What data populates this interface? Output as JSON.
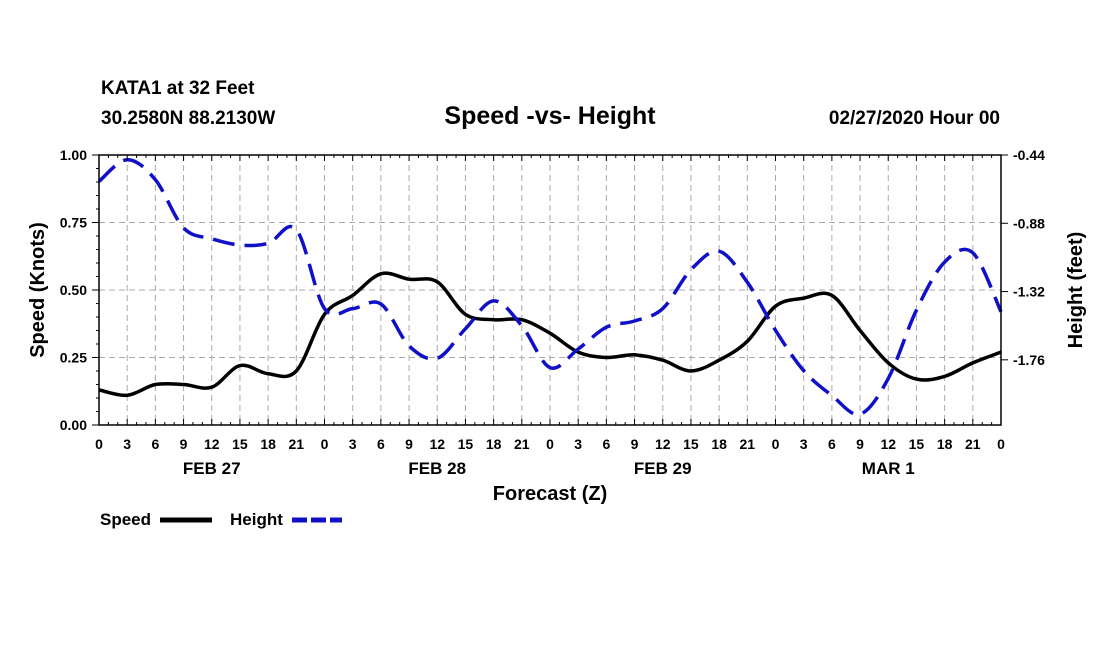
{
  "header": {
    "station": "KATA1 at 32 Feet",
    "coords": "30.2580N 88.2130W",
    "title": "Speed -vs- Height",
    "run": "02/27/2020 Hour 00"
  },
  "chart_data": {
    "type": "line",
    "title": "Speed -vs- Height",
    "xlabel": "Forecast (Z)",
    "ylabel_left": "Speed (Knots)",
    "ylabel_right": "Height (feet)",
    "x_unit": "hours since 02/27/2020 00Z",
    "xlim": [
      0,
      96
    ],
    "ylim_left": [
      0,
      1.0
    ],
    "ylim_right": [
      -2.18,
      -0.44
    ],
    "y_ticks_left": [
      "0.00",
      "0.25",
      "0.50",
      "0.75",
      "1.00"
    ],
    "y_tick_values_left": [
      0,
      0.25,
      0.5,
      0.75,
      1.0
    ],
    "y_ticks_right": [
      "-0.44",
      "-0.88",
      "-1.32",
      "-1.76"
    ],
    "y_tick_values_right": [
      -0.44,
      -0.88,
      -1.32,
      -1.76
    ],
    "x_tick_hours": [
      0,
      3,
      6,
      9,
      12,
      15,
      18,
      21,
      24,
      27,
      30,
      33,
      36,
      39,
      42,
      45,
      48,
      51,
      54,
      57,
      60,
      63,
      66,
      69,
      72,
      75,
      78,
      81,
      84,
      87,
      90,
      93,
      96
    ],
    "x_tick_labels": [
      "0",
      "3",
      "6",
      "9",
      "12",
      "15",
      "18",
      "21",
      "0",
      "3",
      "6",
      "9",
      "12",
      "15",
      "18",
      "21",
      "0",
      "3",
      "6",
      "9",
      "12",
      "15",
      "18",
      "21",
      "0",
      "3",
      "6",
      "9",
      "12",
      "15",
      "18",
      "21",
      "0"
    ],
    "date_labels": [
      {
        "hour": 12,
        "label": "FEB 27"
      },
      {
        "hour": 36,
        "label": "FEB 28"
      },
      {
        "hour": 60,
        "label": "FEB 29"
      },
      {
        "hour": 84,
        "label": "MAR 1"
      }
    ],
    "grid": true,
    "series": [
      {
        "name": "Speed",
        "axis": "left",
        "color": "#000000",
        "style": "solid",
        "x": [
          0,
          3,
          6,
          9,
          12,
          15,
          18,
          21,
          24,
          27,
          30,
          33,
          36,
          39,
          42,
          45,
          48,
          51,
          54,
          57,
          60,
          63,
          66,
          69,
          72,
          75,
          78,
          81,
          84,
          87,
          90,
          93,
          96
        ],
        "y": [
          0.13,
          0.11,
          0.15,
          0.15,
          0.14,
          0.22,
          0.19,
          0.2,
          0.41,
          0.48,
          0.56,
          0.54,
          0.53,
          0.41,
          0.39,
          0.39,
          0.34,
          0.27,
          0.25,
          0.26,
          0.24,
          0.2,
          0.24,
          0.31,
          0.44,
          0.47,
          0.48,
          0.35,
          0.23,
          0.17,
          0.18,
          0.23,
          0.27
        ]
      },
      {
        "name": "Height",
        "axis": "right",
        "color": "#1010c8",
        "style": "dashed",
        "x": [
          0,
          3,
          6,
          9,
          12,
          15,
          18,
          21,
          24,
          27,
          30,
          33,
          36,
          39,
          42,
          45,
          48,
          51,
          54,
          57,
          60,
          63,
          66,
          69,
          72,
          75,
          78,
          81,
          84,
          87,
          90,
          93,
          96
        ],
        "y": [
          -0.61,
          -0.47,
          -0.6,
          -0.91,
          -0.98,
          -1.02,
          -1.01,
          -0.92,
          -1.43,
          -1.43,
          -1.4,
          -1.67,
          -1.75,
          -1.56,
          -1.38,
          -1.54,
          -1.81,
          -1.69,
          -1.55,
          -1.51,
          -1.43,
          -1.18,
          -1.06,
          -1.26,
          -1.57,
          -1.83,
          -1.99,
          -2.11,
          -1.88,
          -1.44,
          -1.13,
          -1.07,
          -1.45
        ]
      }
    ],
    "legend": [
      {
        "label": "Speed",
        "color": "#000000",
        "style": "solid"
      },
      {
        "label": "Height",
        "color": "#1010c8",
        "style": "dashed"
      }
    ]
  }
}
